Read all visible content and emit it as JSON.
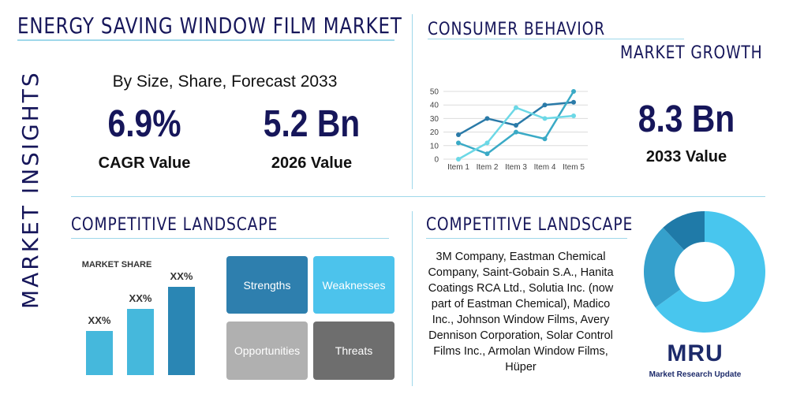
{
  "title": "ENERGY SAVING WINDOW FILM MARKET",
  "side_label": "MARKET INSIGHTS",
  "subtitle": "By Size, Share, Forecast 2033",
  "stats": [
    {
      "value": "6.9%",
      "label": "CAGR Value"
    },
    {
      "value": "5.2 Bn",
      "label": "2026 Value"
    },
    {
      "value": "8.3 Bn",
      "label": "2033 Value"
    }
  ],
  "consumer_heading": "CONSUMER BEHAVIOR",
  "growth_heading": "MARKET GROWTH",
  "line_chart": {
    "type": "line",
    "categories": [
      "Item 1",
      "Item 2",
      "Item 3",
      "Item 4",
      "Item 5"
    ],
    "ylim": [
      0,
      50
    ],
    "yticks": [
      0,
      10,
      20,
      30,
      40,
      50
    ],
    "grid": true,
    "series": [
      {
        "color": "#2a7aa8",
        "values": [
          18,
          30,
          25,
          40,
          42
        ]
      },
      {
        "color": "#3aaac6",
        "values": [
          12,
          4,
          20,
          15,
          50
        ]
      },
      {
        "color": "#6cd8e6",
        "values": [
          0,
          12,
          38,
          30,
          32
        ]
      }
    ]
  },
  "competitive_heading_left": "COMPETITIVE LANDSCAPE",
  "bar_chart": {
    "type": "bar",
    "title": "MARKET SHARE",
    "values": [
      20,
      30,
      40
    ],
    "value_labels": [
      "XX%",
      "XX%",
      "XX%"
    ],
    "ylim": [
      0,
      40
    ],
    "colors": [
      "#45b8dc",
      "#45b8dc",
      "#2a86b4"
    ]
  },
  "swot": [
    "Strengths",
    "Weaknesses",
    "Opportunities",
    "Threats"
  ],
  "competitive_heading_right": "COMPETITIVE LANDSCAPE",
  "companies": "3M Company, Eastman Chemical Company, Saint-Gobain S.A., Hanita Coatings RCA Ltd., Solutia Inc. (now part of Eastman Chemical), Madico Inc., Johnson Window Films, Avery Dennison Corporation, Solar Control Films Inc., Armolan Window Films, Hüper",
  "donut": {
    "type": "pie",
    "values": [
      65,
      23,
      12
    ],
    "colors": [
      "#48c6ee",
      "#35a0cc",
      "#1f7aa8"
    ]
  },
  "logo": {
    "mark": "MRU",
    "text": "Market Research Update"
  }
}
